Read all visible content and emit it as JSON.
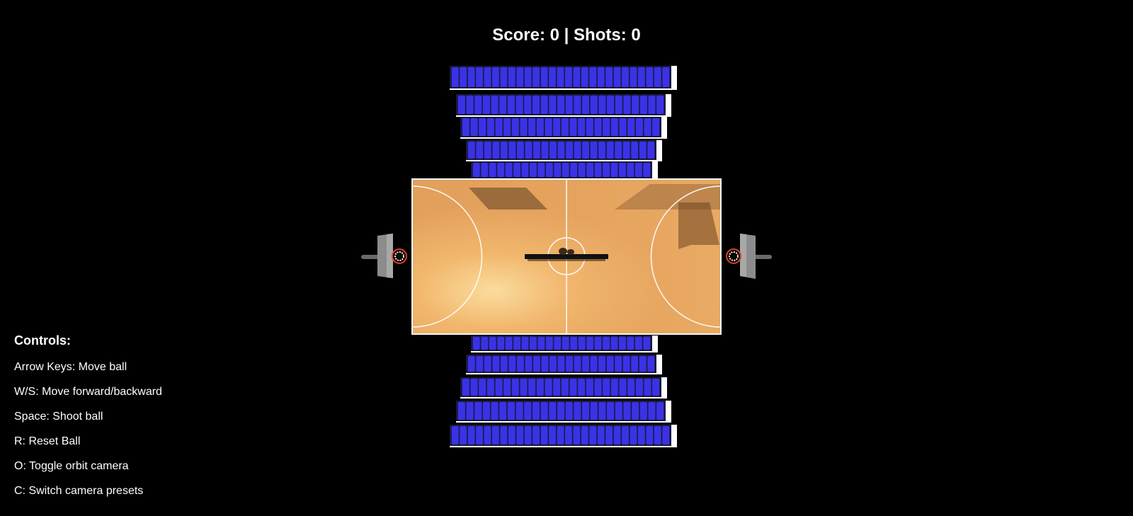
{
  "hud": {
    "score_text": "Score: 0 | Shots: 0",
    "score": 0,
    "shots": 0
  },
  "controls": {
    "title": "Controls:",
    "items": [
      "Arrow Keys: Move ball",
      "W/S: Move forward/backward",
      "Space: Shoot ball",
      "R: Reset Ball",
      "O: Toggle orbit camera",
      "C: Switch camera presets"
    ]
  },
  "colors": {
    "background": "#000000",
    "court": "#e8a55e",
    "court_light": "#fde0a0",
    "court_lines": "#ffffff",
    "seats": "#3a32e6",
    "seat_risers": "#ffffff",
    "backboard": "#8a8a8a",
    "rim": "#e04020"
  }
}
